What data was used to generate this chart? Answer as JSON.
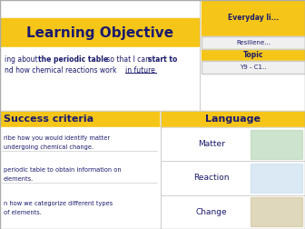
{
  "title": "Learning Objective",
  "title_bg": "#F5C518",
  "title_color": "#1a1a6e",
  "body_bg": "#ffffff",
  "sidebar_title1": "Everyday li...",
  "sidebar_val1": "Resiliene...",
  "sidebar_title2": "Topic",
  "sidebar_val2": "Y9 - C1..",
  "sidebar_bg": "#F5C518",
  "sidebar_cell_bg": "#f0f0f0",
  "objective_text1": "ing about ",
  "objective_bold1": "the periodic table",
  "objective_text2": " so that I can ",
  "objective_bold2": "start to",
  "objective_text3": "nd how chemical reactions work ",
  "objective_underline": "in future",
  "success_title": "Success criteria",
  "success_bg": "#F5C518",
  "success_items": [
    "ribe how you would identify matter\nundergoing chemical change.",
    "periodic table to obtain information on\nelements.",
    "n how we categorize different types\nof elements."
  ],
  "language_title": "Language",
  "language_bg": "#F5C518",
  "language_items": [
    "Matter",
    "Reaction",
    "Change"
  ],
  "text_color": "#1a1a6e",
  "body_text_color": "#1a1a6e",
  "cell_border_color": "#cccccc",
  "figsize": [
    3.36,
    2.52
  ],
  "dpi": 100
}
